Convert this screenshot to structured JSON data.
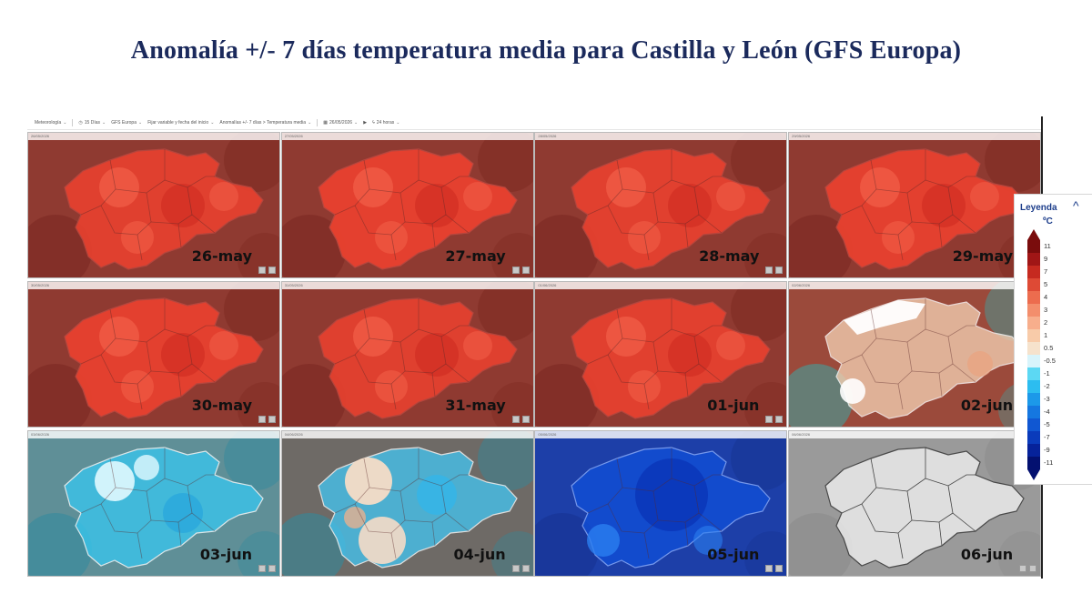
{
  "title": "Anomalía +/- 7 días temperatura media para Castilla y León (GFS Europa)",
  "toolbar": {
    "items": [
      "Meteorología",
      "15 Días",
      "GFS Europa",
      "Fijar variable y fecha del inicio",
      "Anomalías +/- 7 días > Temperatura media",
      "26/05/2026",
      "24 horas"
    ]
  },
  "tiles": [
    {
      "label": "26-may",
      "header": "26/05/2026",
      "scheme": "warm",
      "intensity": 0.8
    },
    {
      "label": "27-may",
      "header": "27/05/2026",
      "scheme": "warm",
      "intensity": 0.9
    },
    {
      "label": "28-may",
      "header": "28/05/2026",
      "scheme": "warm",
      "intensity": 0.82
    },
    {
      "label": "29-may",
      "header": "29/05/2026",
      "scheme": "warm",
      "intensity": 0.88
    },
    {
      "label": "30-may",
      "header": "30/05/2026",
      "scheme": "warm",
      "intensity": 0.88
    },
    {
      "label": "31-may",
      "header": "31/05/2026",
      "scheme": "warm",
      "intensity": 0.78
    },
    {
      "label": "01-jun",
      "header": "01/06/2026",
      "scheme": "warm",
      "intensity": 0.82
    },
    {
      "label": "02-jun",
      "header": "02/06/2026",
      "scheme": "mild",
      "intensity": 0.5
    },
    {
      "label": "03-jun",
      "header": "03/06/2026",
      "scheme": "cool",
      "intensity": 0.5
    },
    {
      "label": "04-jun",
      "header": "04/06/2026",
      "scheme": "mixed",
      "intensity": 0.5
    },
    {
      "label": "05-jun",
      "header": "05/06/2026",
      "scheme": "cold",
      "intensity": 0.5
    },
    {
      "label": "06-jun",
      "header": "06/06/2026",
      "scheme": "empty",
      "intensity": 0.5
    }
  ],
  "legend": {
    "title": "Leyenda",
    "unit": "ºC",
    "ticks": [
      "11",
      "9",
      "7",
      "5",
      "4",
      "3",
      "2",
      "1",
      "0.5",
      "-0.5",
      "-1",
      "-2",
      "-3",
      "-4",
      "-5",
      "-7",
      "-9",
      "-11"
    ],
    "colors": [
      "#7a0c0c",
      "#a01616",
      "#c62a20",
      "#de4a35",
      "#ec6c4e",
      "#f38e6c",
      "#f7ae8c",
      "#f8cba9",
      "#f6e2cc",
      "#d8f4fb",
      "#5cd8f3",
      "#2cbdf0",
      "#1c99e9",
      "#1577e0",
      "#1057d2",
      "#0a3bbb",
      "#06229a",
      "#031070"
    ]
  }
}
